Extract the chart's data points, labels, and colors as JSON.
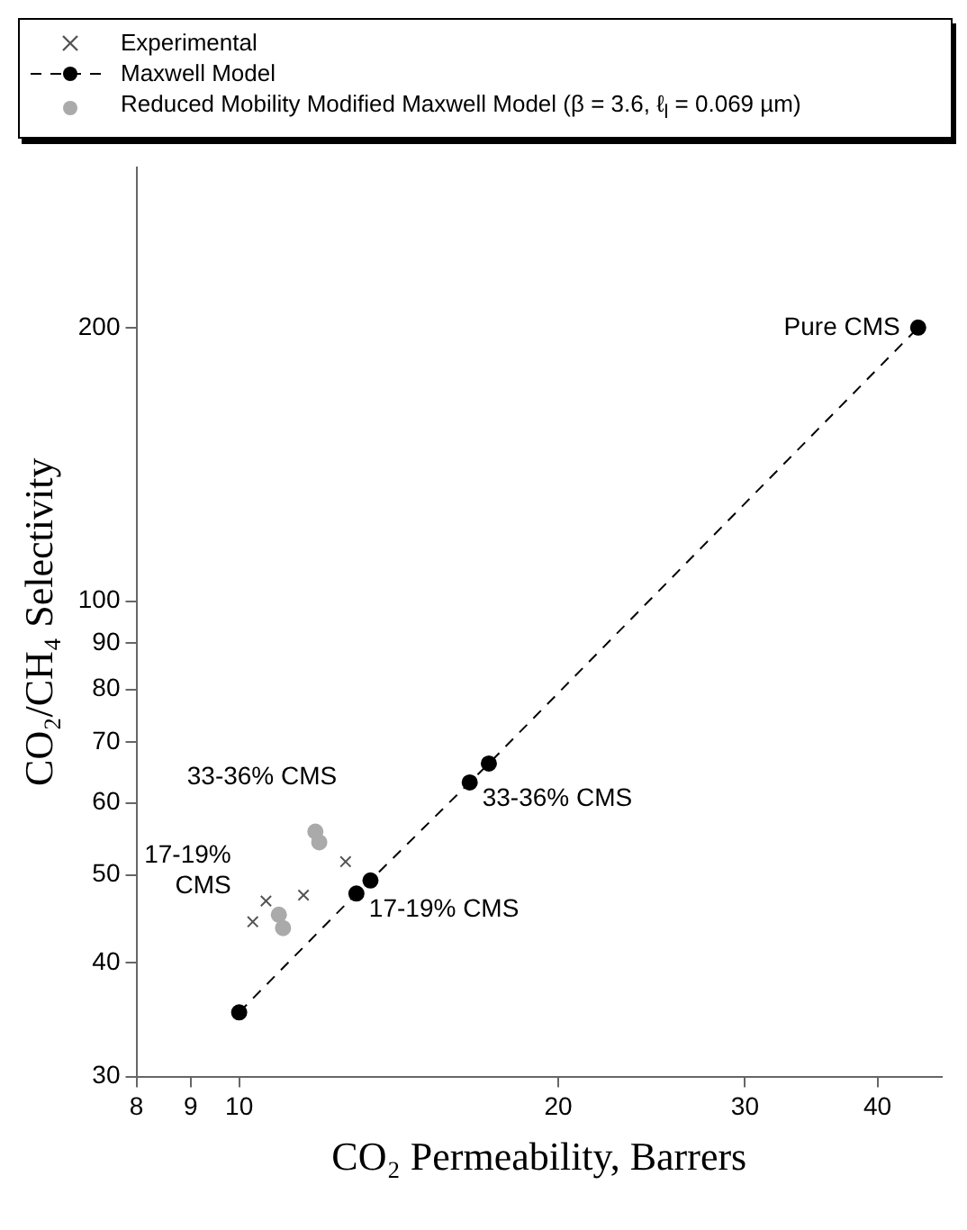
{
  "chart_data": {
    "type": "scatter",
    "xlabel": "CO₂ Permeability, Barrers",
    "ylabel": "CO₂/CH₄ Selectivity",
    "log": "xy",
    "grid": false,
    "legend": "top",
    "xlim": [
      8,
      46
    ],
    "xticks": [
      8,
      9,
      10,
      20,
      30,
      40
    ],
    "ylim": [
      30,
      300
    ],
    "yticks": [
      30,
      40,
      50,
      60,
      70,
      80,
      90,
      100,
      200
    ],
    "series": [
      {
        "name": "Experimental",
        "marker": "cross",
        "color": "#555555",
        "x": [
          10.3,
          10.6,
          11.5,
          12.6
        ],
        "values": [
          44.4,
          46.8,
          47.5,
          51.7
        ]
      },
      {
        "name": "Maxwell Model",
        "type": "line",
        "marker": "circle",
        "line_style": "dashed",
        "color": "#000000",
        "x": [
          10,
          12.9,
          13.3,
          16.5,
          17.2,
          43.7
        ],
        "values": [
          35.3,
          47.7,
          49.3,
          63.2,
          66.3,
          200
        ]
      },
      {
        "name": "Reduced Mobility Modified Maxwell Model (β = 3.6, ℓ$_{l}$ = 0.069 µm)",
        "marker": "circle",
        "color": "#aaaaaa",
        "x": [
          10.9,
          11.0,
          11.8,
          11.9
        ],
        "values": [
          45.2,
          43.7,
          55.8,
          54.3
        ]
      }
    ],
    "annotations": [
      {
        "text": "Pure CMS",
        "x": 43.7,
        "y": 200
      },
      {
        "text": "33-36% CMS",
        "x": 16.5,
        "y": 63.2
      },
      {
        "text": "17-19% CMS",
        "x": 12.9,
        "y": 47.7
      },
      {
        "text": "33-36% CMS",
        "x": 11.8,
        "y": 55.8
      },
      {
        "text": "17-19%\nCMS",
        "x": 10.3,
        "y": 44.4
      }
    ]
  }
}
